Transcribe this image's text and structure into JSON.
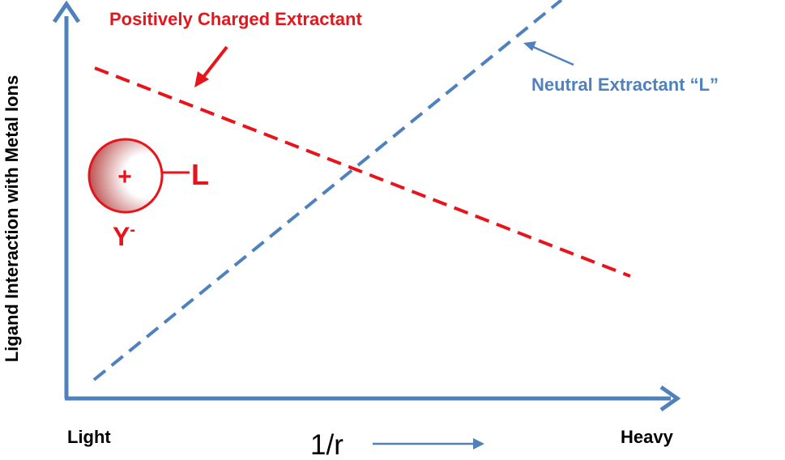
{
  "axes": {
    "y_label": "Ligand Interaction with Metal Ions",
    "x_label": "1/r",
    "x_left_label": "Light",
    "x_right_label": "Heavy"
  },
  "lines": {
    "positive": {
      "label": "Positively Charged Extractant",
      "color": "#e8141b"
    },
    "neutral": {
      "label": "Neutral Extractant “L”",
      "color": "#4f81bd"
    }
  },
  "ion_pair": {
    "cation_symbol": "+",
    "ligand_symbol": "L",
    "anion_base": "Y",
    "anion_charge": "-"
  },
  "colors": {
    "axis": "#4f81bd",
    "text": "#000000"
  }
}
